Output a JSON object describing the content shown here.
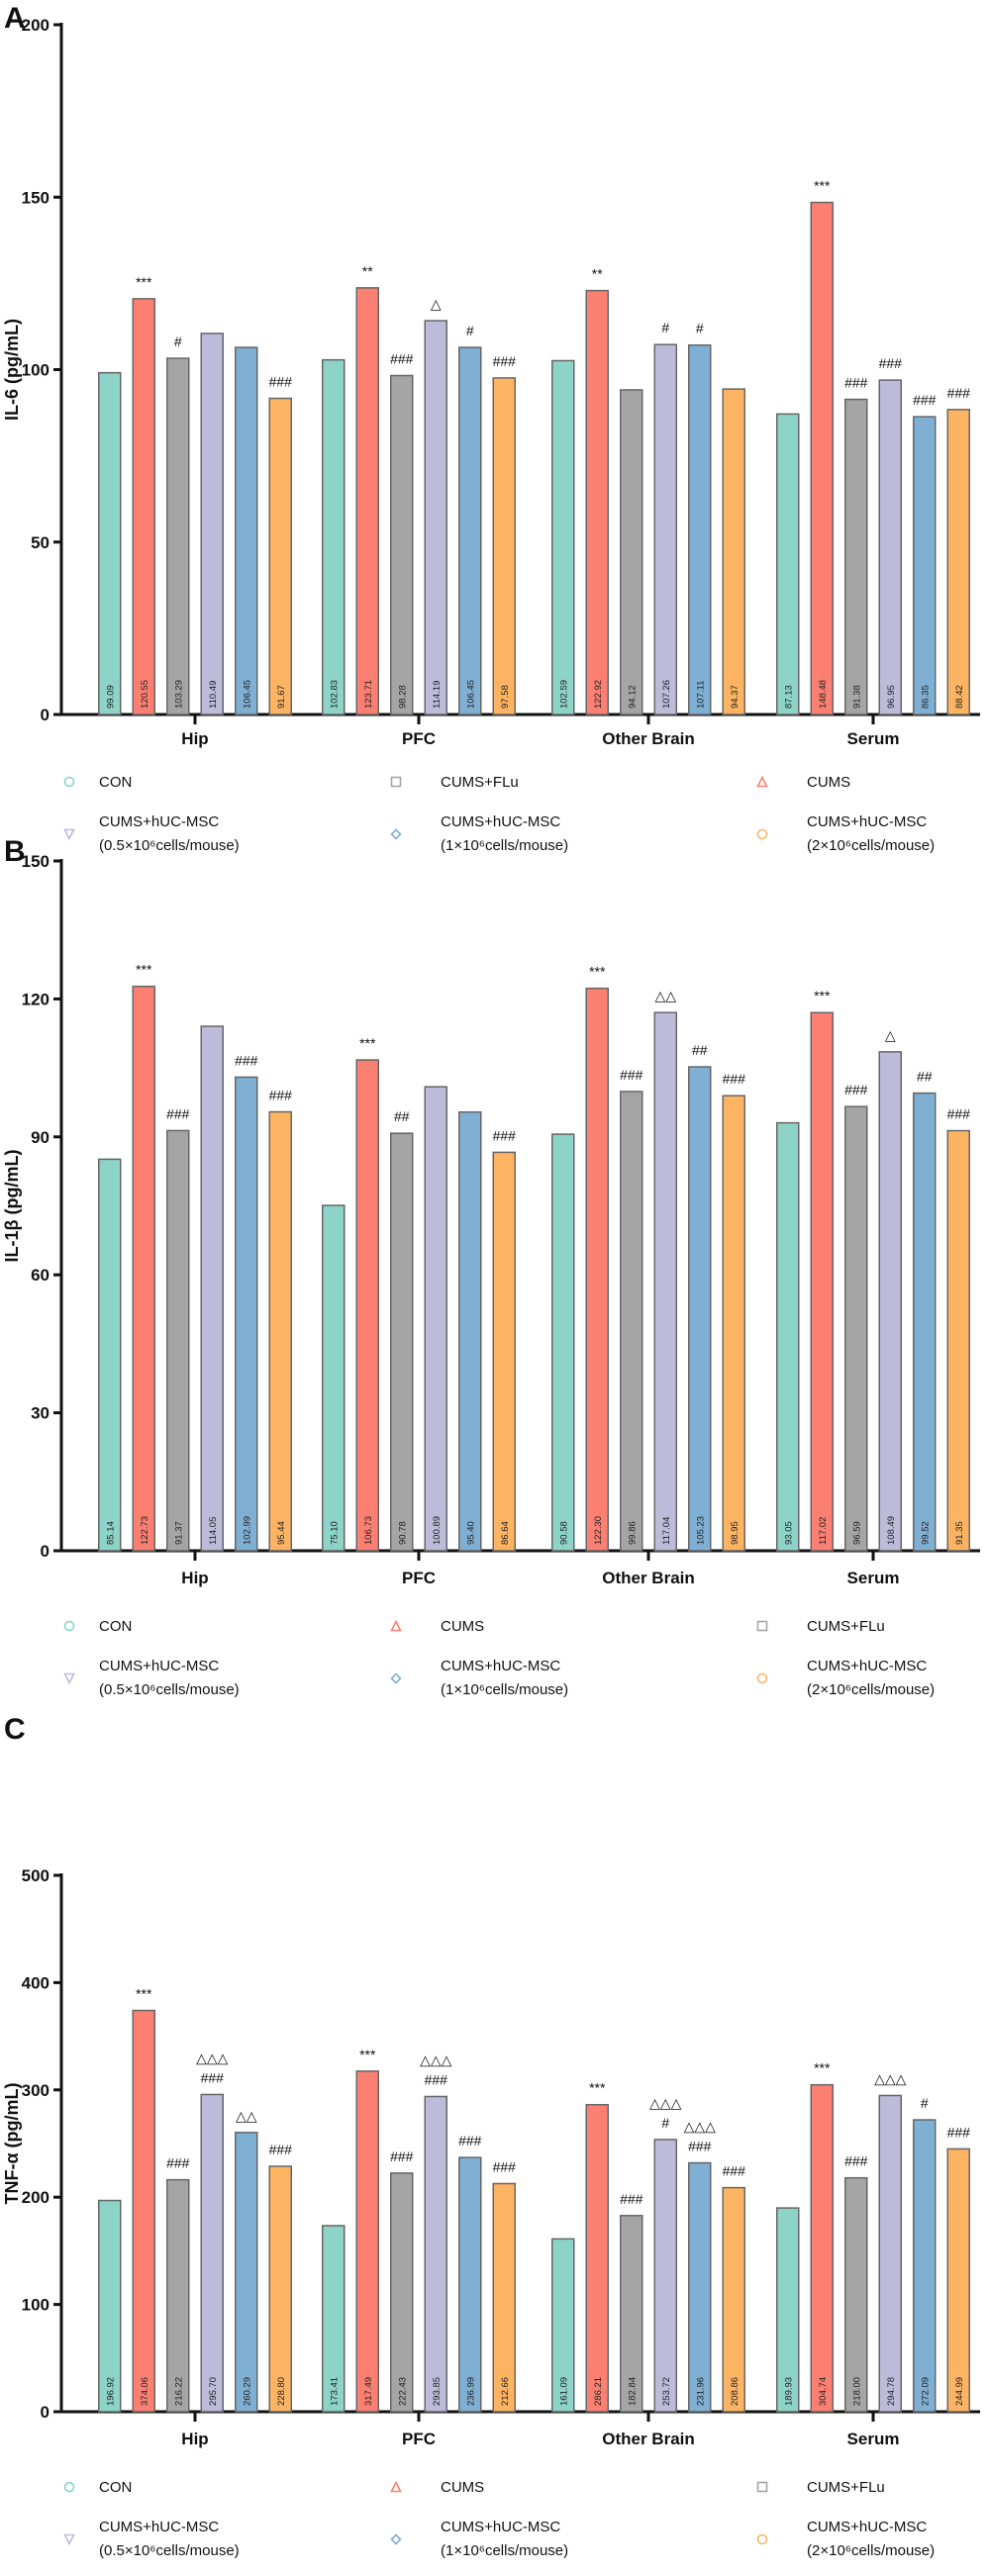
{
  "colors": {
    "CON": "#8dd3c7",
    "CUMS": "#fb8072",
    "CUMS+FLu": "#a5a5a5",
    "hUC05": "#bebada",
    "hUC1": "#7fb0d4",
    "hUC2": "#fdb462"
  },
  "groups": [
    {
      "key": "CON",
      "label": "CON",
      "marker": "circle"
    },
    {
      "key": "CUMS",
      "label": "CUMS",
      "marker": "triangle-up"
    },
    {
      "key": "CUMS+FLu",
      "label": "CUMS+FLu",
      "marker": "square"
    },
    {
      "key": "hUC05",
      "label": "CUMS+hUC-MSC",
      "sub": "(0.5×10⁶cells/mouse)",
      "marker": "triangle-down"
    },
    {
      "key": "hUC1",
      "label": "CUMS+hUC-MSC",
      "sub": "(1×10⁶cells/mouse)",
      "marker": "diamond"
    },
    {
      "key": "hUC2",
      "label": "CUMS+hUC-MSC",
      "sub": "(2×10⁶cells/mouse)",
      "marker": "hexagon"
    }
  ],
  "bar_order": [
    "CON",
    "CUMS",
    "CUMS+FLu",
    "hUC05",
    "hUC1",
    "hUC2"
  ],
  "chart_data": [
    {
      "panel": "A",
      "type": "bar",
      "ylabel": "IL-6 (pg/mL)",
      "ylim": [
        0,
        200
      ],
      "yticks": [
        0,
        50,
        100,
        150,
        200
      ],
      "categories": [
        "Hip",
        "PFC",
        "Other Brain",
        "Serum"
      ],
      "legend_order": [
        "CON",
        "CUMS+FLu",
        "CUMS",
        "hUC05",
        "hUC1",
        "hUC2"
      ],
      "values": [
        [
          99.09,
          120.55,
          103.29,
          110.49,
          106.45,
          91.67
        ],
        [
          102.83,
          123.71,
          98.28,
          114.19,
          106.45,
          97.58
        ],
        [
          102.59,
          122.92,
          94.12,
          107.26,
          107.11,
          94.37
        ],
        [
          87.13,
          148.48,
          91.38,
          96.95,
          86.35,
          88.42
        ]
      ],
      "labels": [
        [
          "99.09",
          "120.55",
          "103.29",
          "110.49",
          "106.45",
          "91.67"
        ],
        [
          "102.83",
          "123.71",
          "98.28",
          "114.19",
          "106.45",
          "97.58"
        ],
        [
          "102.59",
          "122.92",
          "94.12",
          "107.26",
          "107.11",
          "94.37"
        ],
        [
          "87.13",
          "148.48",
          "91.38",
          "96.95",
          "86.35",
          "88.42"
        ]
      ],
      "significance": [
        [
          "",
          "***",
          "#",
          "",
          "",
          "###"
        ],
        [
          "",
          "**",
          "###",
          "△",
          "#",
          "###"
        ],
        [
          "",
          "**",
          "",
          "#",
          "#",
          ""
        ],
        [
          "",
          "***",
          "###",
          "###",
          "###",
          "###"
        ]
      ]
    },
    {
      "panel": "B",
      "type": "bar",
      "ylabel": "IL-1β (pg/mL)",
      "ylim": [
        0,
        150
      ],
      "yticks": [
        0,
        30,
        60,
        90,
        120,
        150
      ],
      "categories": [
        "Hip",
        "PFC",
        "Other Brain",
        "Serum"
      ],
      "legend_order": [
        "CON",
        "CUMS",
        "CUMS+FLu",
        "hUC05",
        "hUC1",
        "hUC2"
      ],
      "values": [
        [
          85.14,
          122.73,
          91.37,
          114.05,
          102.99,
          95.44
        ],
        [
          75.1,
          106.73,
          90.78,
          100.89,
          95.4,
          86.64
        ],
        [
          90.58,
          122.3,
          99.86,
          117.04,
          105.23,
          98.95
        ],
        [
          93.05,
          117.02,
          96.59,
          108.49,
          99.52,
          91.35
        ]
      ],
      "labels": [
        [
          "85.14",
          "122.73",
          "91.37",
          "114.05",
          "102.99",
          "95.44"
        ],
        [
          "75.10",
          "106.73",
          "90.78",
          "100.89",
          "95.40",
          "86.64"
        ],
        [
          "90.58",
          "122.30",
          "99.86",
          "117.04",
          "105.23",
          "98.95"
        ],
        [
          "93.05",
          "117.02",
          "96.59",
          "108.49",
          "99.52",
          "91.35"
        ]
      ],
      "significance": [
        [
          "",
          "***",
          "###",
          "",
          "###",
          "###"
        ],
        [
          "",
          "***",
          "##",
          "",
          "",
          "###"
        ],
        [
          "",
          "***",
          "###",
          "△△",
          "##",
          "###"
        ],
        [
          "",
          "***",
          "###",
          "△",
          "##",
          "###"
        ]
      ]
    },
    {
      "panel": "C",
      "type": "bar",
      "ylabel": "TNF-α (pg/mL)",
      "ylim": [
        0,
        500
      ],
      "yticks": [
        0,
        100,
        200,
        300,
        400,
        500
      ],
      "categories": [
        "Hip",
        "PFC",
        "Other Brain",
        "Serum"
      ],
      "legend_order": [
        "CON",
        "CUMS",
        "CUMS+FLu",
        "hUC05",
        "hUC1",
        "hUC2"
      ],
      "values": [
        [
          196.92,
          374.06,
          216.22,
          295.7,
          260.29,
          228.8
        ],
        [
          173.41,
          317.49,
          222.43,
          293.85,
          236.99,
          212.66
        ],
        [
          161.09,
          286.21,
          182.84,
          253.72,
          231.96,
          208.86
        ],
        [
          189.93,
          304.74,
          218.0,
          294.78,
          272.09,
          244.99
        ]
      ],
      "labels": [
        [
          "196.92",
          "374.06",
          "216.22",
          "295.70",
          "260.29",
          "228.80"
        ],
        [
          "173.41",
          "317.49",
          "222.43",
          "293.85",
          "236.99",
          "212.66"
        ],
        [
          "161.09",
          "286.21",
          "182.84",
          "253.72",
          "231.96",
          "208.86"
        ],
        [
          "189.93",
          "304.74",
          "218.00",
          "294.78",
          "272.09",
          "244.99"
        ]
      ],
      "significance": [
        [
          "",
          "***",
          "###",
          "###|△△△",
          "△△",
          "###"
        ],
        [
          "",
          "***",
          "###",
          "###|△△△",
          "###",
          "###"
        ],
        [
          "",
          "***",
          "###",
          "#|△△△",
          "###|△△△",
          "###"
        ],
        [
          "",
          "***",
          "###",
          "△△△",
          "#",
          "###"
        ]
      ]
    }
  ]
}
